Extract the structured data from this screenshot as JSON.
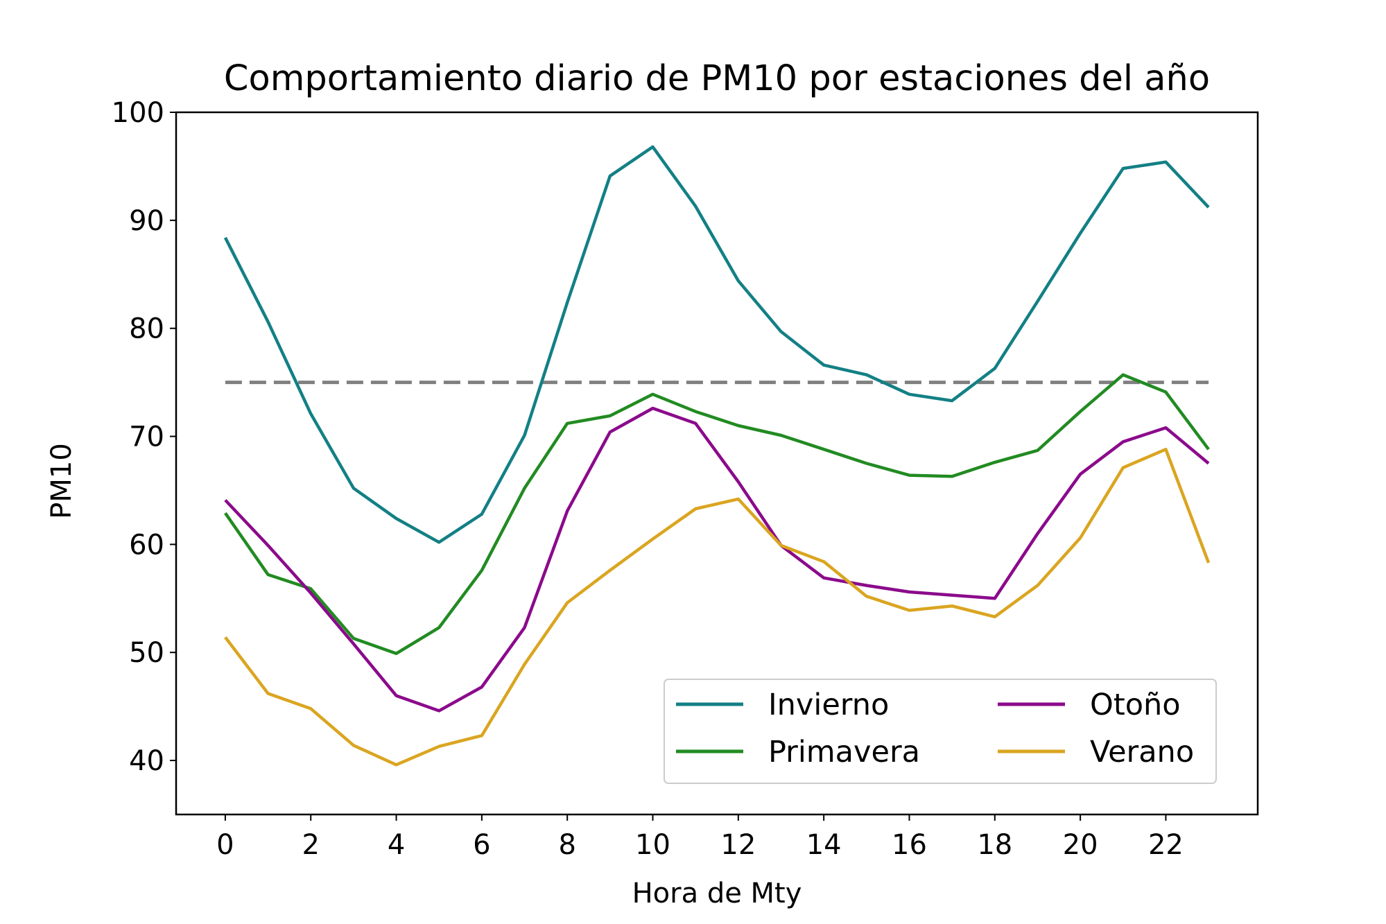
{
  "chart_data": {
    "type": "line",
    "title": "Comportamiento diario de PM10 por estaciones del año",
    "xlabel": "Hora de Mty",
    "ylabel": "PM10",
    "xlim": [
      -1.15,
      24.15
    ],
    "ylim": [
      35,
      100
    ],
    "xticks": [
      0,
      2,
      4,
      6,
      8,
      10,
      12,
      14,
      16,
      18,
      20,
      22
    ],
    "xtick_labels": [
      "0",
      "2",
      "4",
      "6",
      "8",
      "10",
      "12",
      "14",
      "16",
      "18",
      "20",
      "22"
    ],
    "yticks": [
      40,
      50,
      60,
      70,
      80,
      90,
      100
    ],
    "ytick_labels": [
      "40",
      "50",
      "60",
      "70",
      "80",
      "90",
      "100"
    ],
    "grid": false,
    "legend_position": "lower-right",
    "legend_columns": 2,
    "x": [
      0,
      1,
      2,
      3,
      4,
      5,
      6,
      7,
      8,
      9,
      10,
      11,
      12,
      13,
      14,
      15,
      16,
      17,
      18,
      19,
      20,
      21,
      22,
      23
    ],
    "series": [
      {
        "name": "Invierno",
        "color": "#138085",
        "values": [
          88.4,
          80.6,
          72.1,
          65.2,
          62.4,
          60.2,
          62.8,
          70.1,
          82.4,
          94.1,
          96.8,
          91.3,
          84.4,
          79.7,
          76.6,
          75.7,
          73.9,
          73.3,
          76.3,
          82.5,
          88.8,
          94.8,
          95.4,
          91.2
        ]
      },
      {
        "name": "Primavera",
        "color": "#228b22",
        "values": [
          62.9,
          57.2,
          55.9,
          51.3,
          49.9,
          52.3,
          57.6,
          65.2,
          71.2,
          71.9,
          73.9,
          72.3,
          71.0,
          70.1,
          68.8,
          67.5,
          66.4,
          66.3,
          67.6,
          68.7,
          72.3,
          75.7,
          74.1,
          68.8
        ]
      },
      {
        "name": "Otoño",
        "color": "#8b0a8b",
        "values": [
          64.1,
          59.9,
          55.5,
          50.8,
          46.0,
          44.6,
          46.8,
          52.3,
          63.1,
          70.4,
          72.6,
          71.2,
          65.8,
          59.9,
          56.9,
          56.2,
          55.6,
          55.3,
          55.0,
          61.0,
          66.5,
          69.5,
          70.8,
          67.5
        ]
      },
      {
        "name": "Verano",
        "color": "#daa520",
        "values": [
          51.4,
          46.2,
          44.8,
          41.4,
          39.6,
          41.3,
          42.3,
          48.9,
          54.6,
          57.6,
          60.5,
          63.3,
          64.2,
          59.9,
          58.4,
          55.2,
          53.9,
          54.3,
          53.3,
          56.2,
          60.6,
          67.1,
          68.8,
          58.3
        ]
      }
    ],
    "reference_lines": [
      {
        "y": 75,
        "x_start": 0,
        "x_end": 23,
        "color": "#808080",
        "style": "dashed"
      }
    ]
  }
}
